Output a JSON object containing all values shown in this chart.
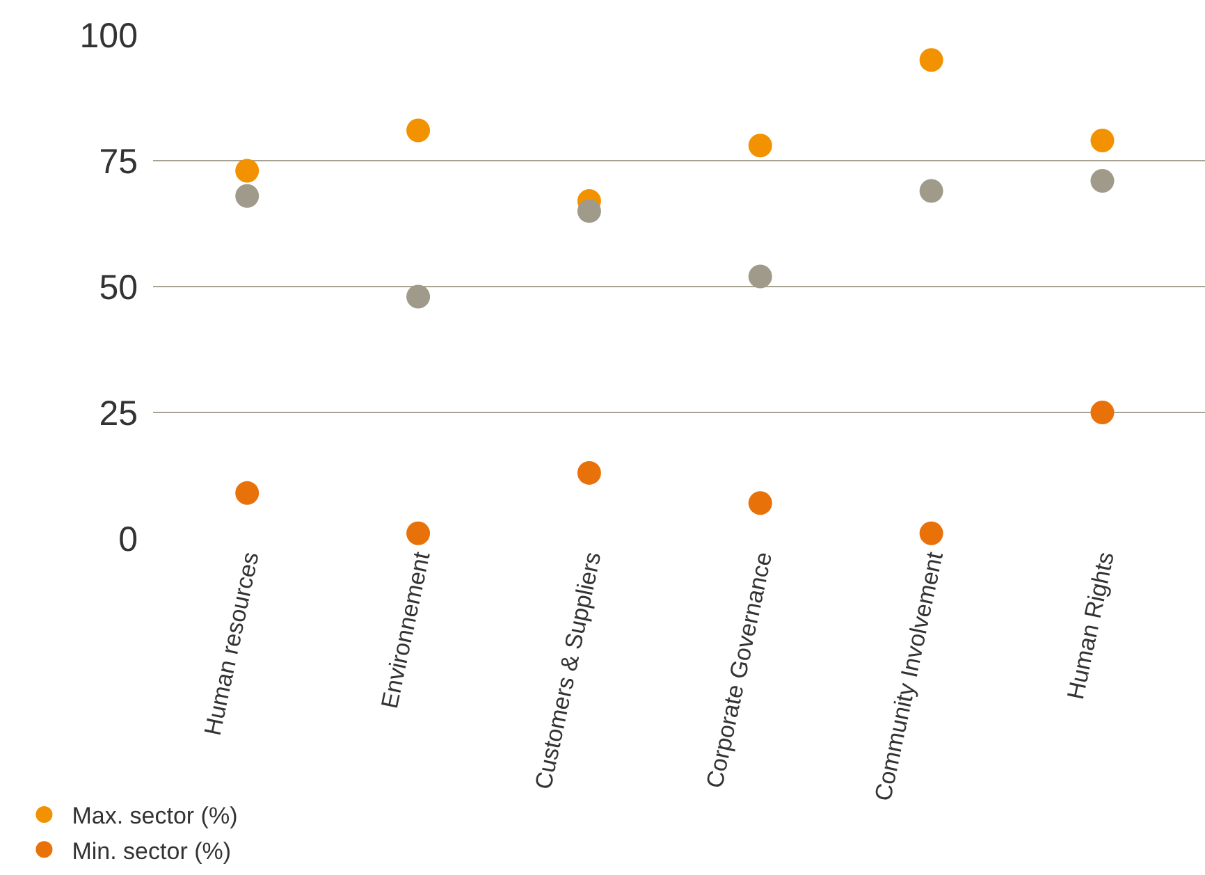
{
  "chart_data": {
    "type": "scatter",
    "categories": [
      "Human resources",
      "Environnement",
      "Customers & Suppliers",
      "Corporate Governance",
      "Community Involvement",
      "Human Rights"
    ],
    "series": [
      {
        "name": "Max. sector (%)",
        "color": "#f39200",
        "values": [
          73,
          81,
          67,
          78,
          95,
          79
        ]
      },
      {
        "color": "#a09a8a",
        "values": [
          68,
          48,
          65,
          52,
          69,
          71
        ]
      },
      {
        "name": "Min. sector (%)",
        "color": "#e8710a",
        "values": [
          9,
          1,
          13,
          7,
          1,
          25
        ]
      }
    ],
    "ylim": [
      0,
      100
    ],
    "yticks": [
      0,
      25,
      50,
      75,
      100
    ],
    "grid": "y",
    "legend": "bottom left",
    "marker": "circle"
  }
}
